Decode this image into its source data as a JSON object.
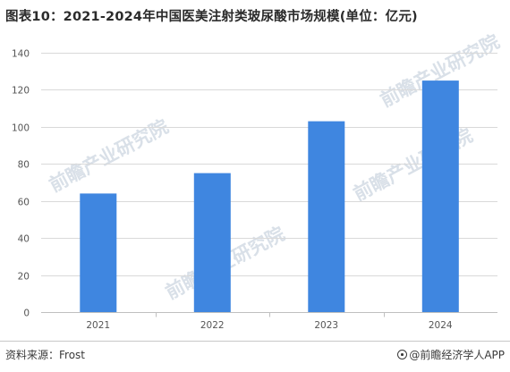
{
  "chart_data": {
    "type": "bar",
    "title": "图表10：2021-2024年中国医美注射类玻尿酸市场规模(单位：亿元)",
    "categories": [
      "2021",
      "2022",
      "2023",
      "2024"
    ],
    "values": [
      64,
      75,
      103,
      125
    ],
    "ylim": [
      0,
      140
    ],
    "yticks": [
      0,
      20,
      40,
      60,
      80,
      100,
      120,
      140
    ],
    "xlabel": "",
    "ylabel": "",
    "grid": "horizontal",
    "legend": "none",
    "bar_color": "#3f86e0",
    "grid_color": "#d9d9d9"
  },
  "footer": {
    "source": "资料来源：Frost",
    "credit": "@前瞻经济学人APP"
  },
  "watermark": {
    "text": "前瞻产业研究院",
    "color": "#b9c6d6"
  }
}
